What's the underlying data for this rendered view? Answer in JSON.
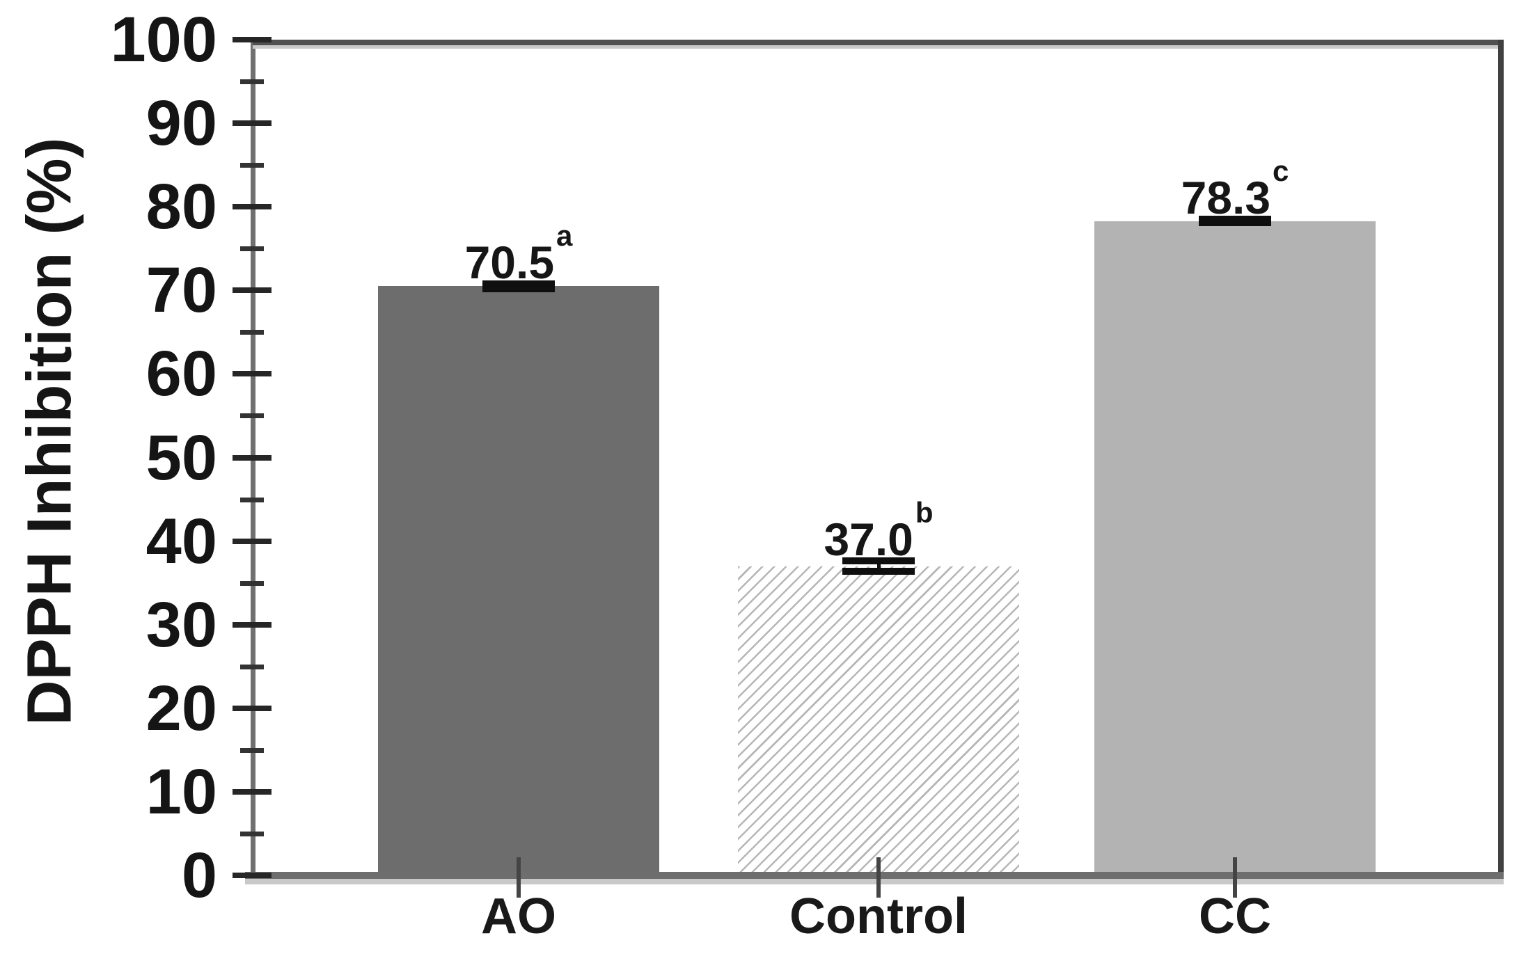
{
  "figure": {
    "background": "#ffffff"
  },
  "chart_data": {
    "type": "bar",
    "title": "",
    "xlabel": "",
    "ylabel": "DPPH Inhibition (%)",
    "categories": [
      "AO",
      "Control",
      "CC"
    ],
    "values": [
      70.5,
      37.0,
      78.3
    ],
    "errors": [
      0.3,
      0.6,
      0.2
    ],
    "value_labels": [
      {
        "text": "70.5",
        "superscript": "a"
      },
      {
        "text": "37.0",
        "superscript": "b"
      },
      {
        "text": "78.3",
        "superscript": "c"
      }
    ],
    "bar_styles": [
      "solid-dark",
      "hatched",
      "solid-light"
    ],
    "ylim": [
      0,
      100
    ],
    "ymajor_ticks": [
      0,
      10,
      20,
      30,
      40,
      50,
      60,
      70,
      80,
      90,
      100
    ],
    "yminor_ticks": [
      5,
      15,
      25,
      35,
      45,
      55,
      65,
      75,
      85,
      95
    ],
    "grid": false,
    "legend": "none",
    "colors": {
      "bar_dark": "#6d6d6d",
      "bar_light": "#b3b3b3",
      "hatch_line": "#6e6e6e",
      "hatch_background": "#ffffff",
      "error_bar": "#0f0f0f",
      "spine_left": "#707070",
      "spine_top": "#505050",
      "spine_right": "#404040",
      "axis_bottom": "#6e6e6e",
      "axis_echo": "#c9c9c9",
      "tick_major": "#262626",
      "tick_minor": "#333333",
      "xtick": "#444444",
      "text": "#151515"
    }
  }
}
